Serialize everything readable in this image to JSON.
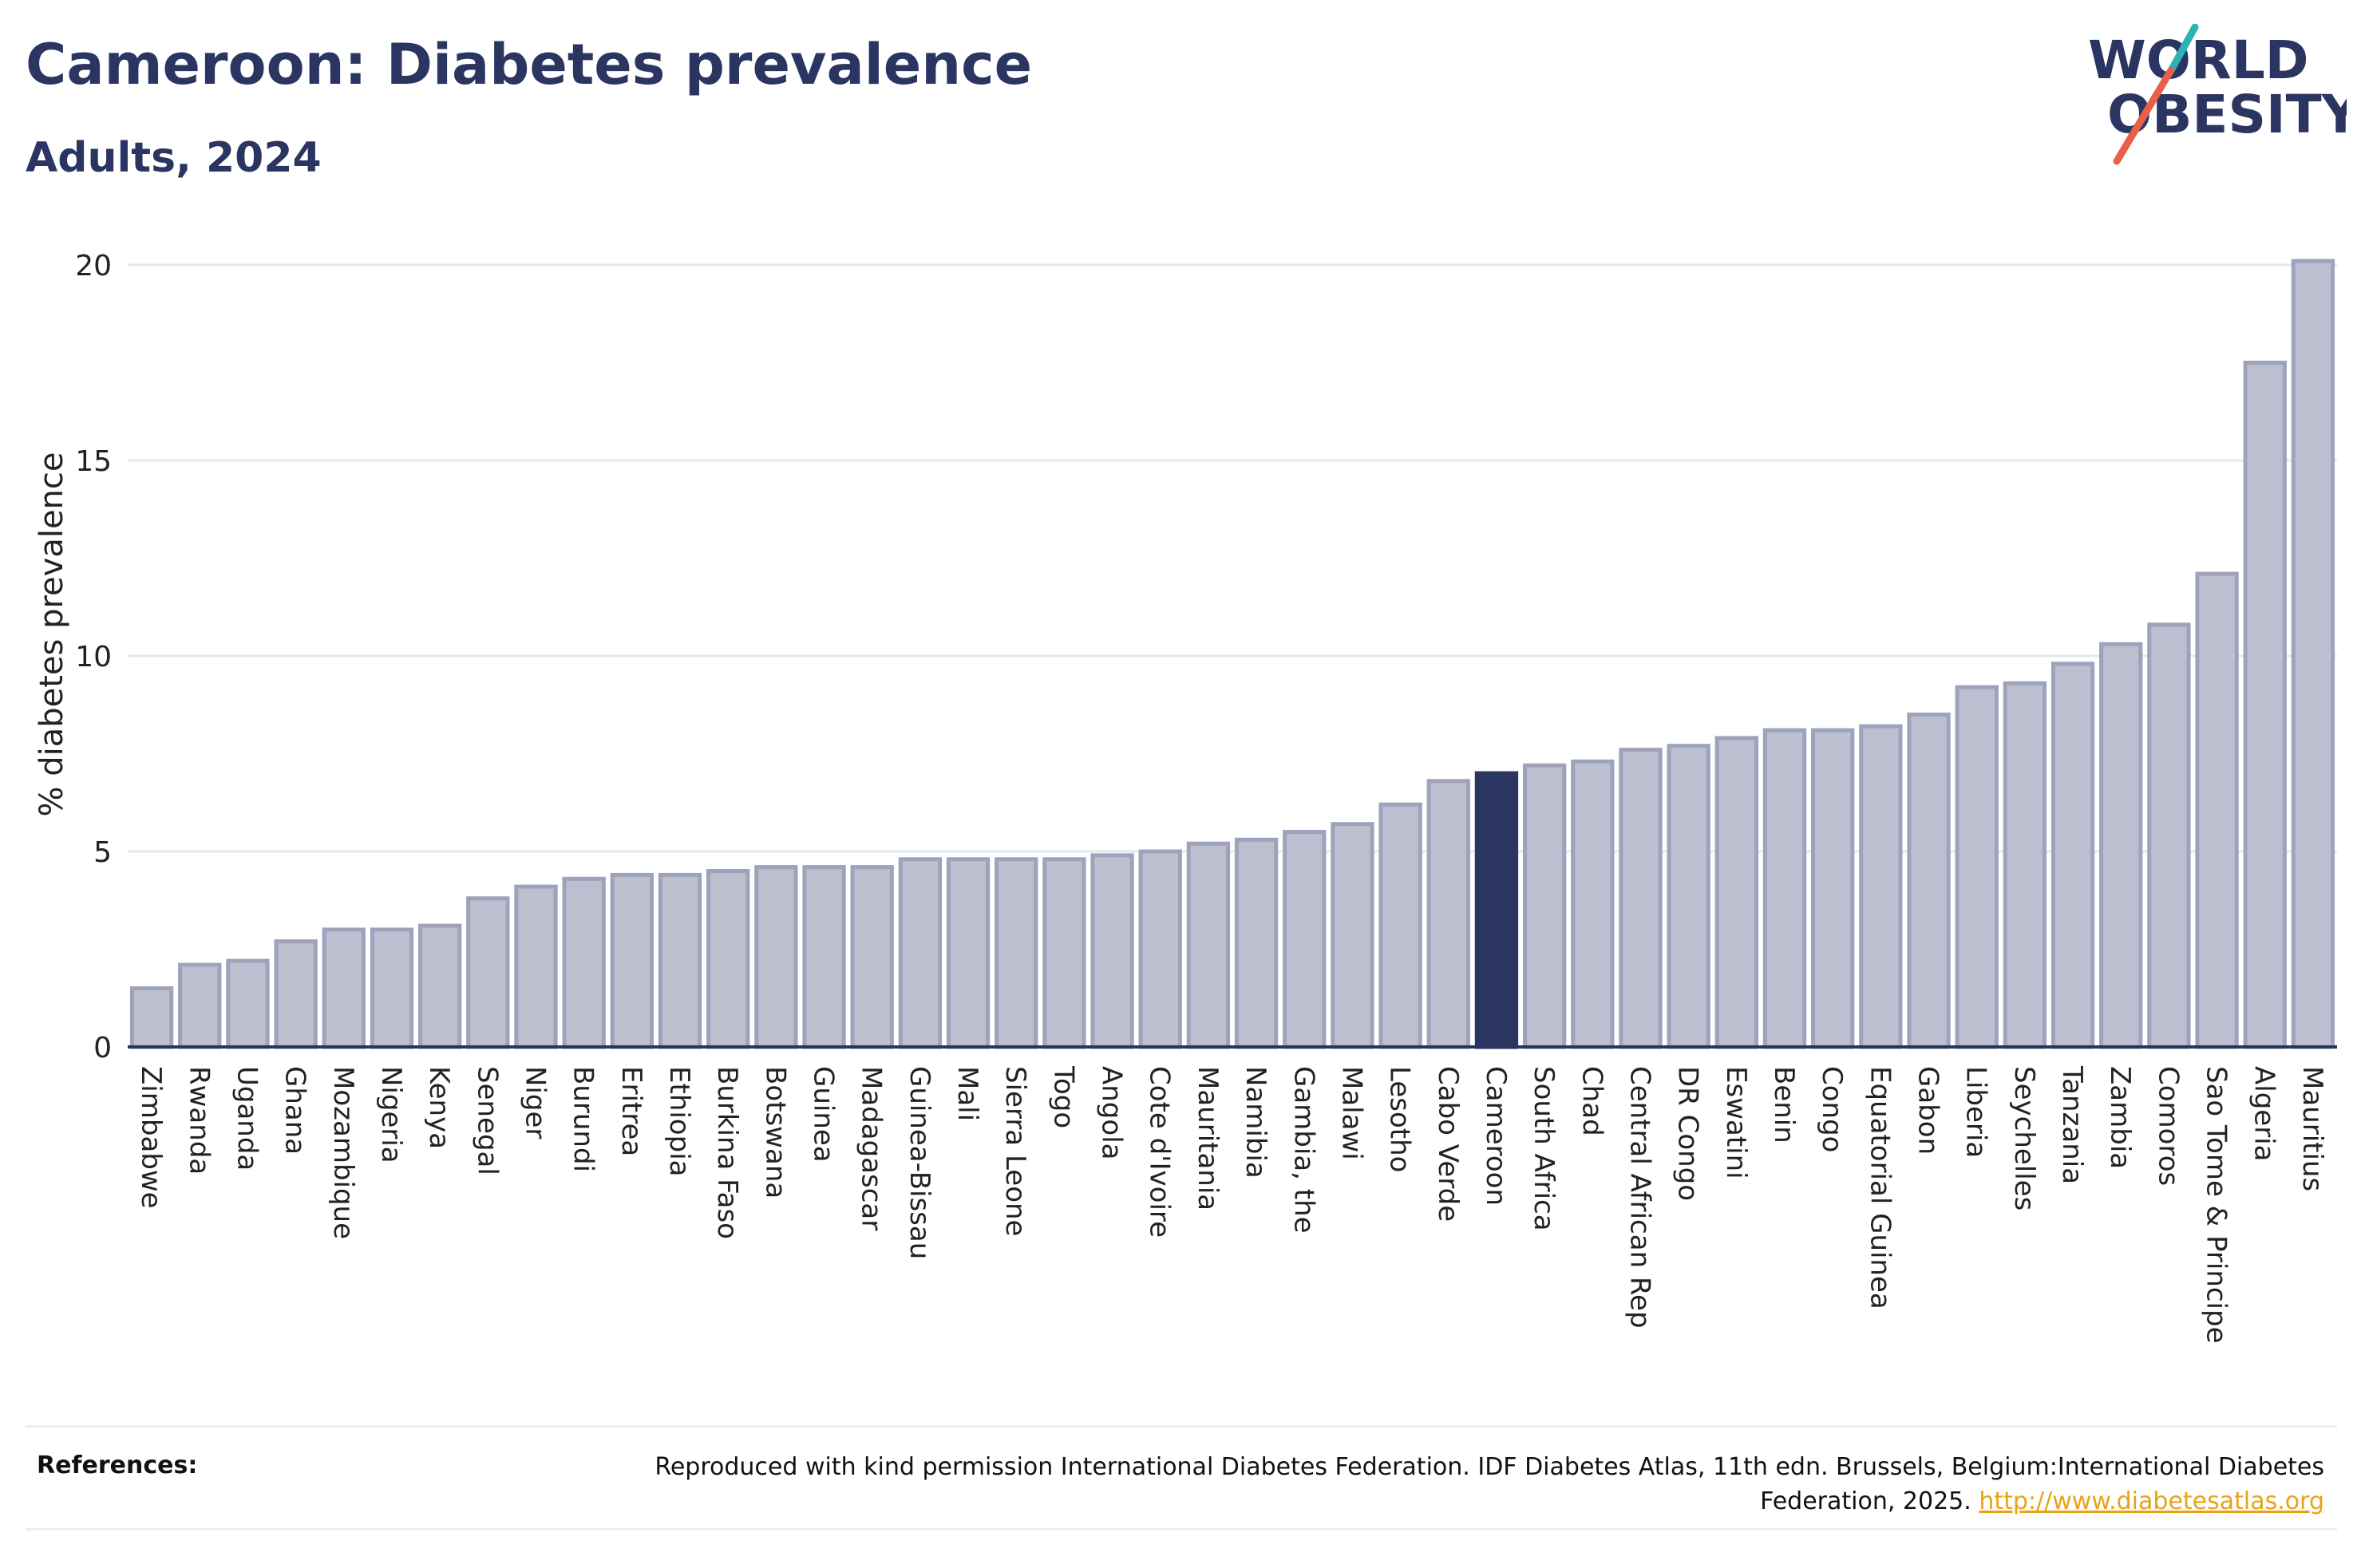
{
  "header": {
    "title": "Cameroon: Diabetes prevalence",
    "subtitle": "Adults, 2024"
  },
  "logo": {
    "line1": "WORLD",
    "line2": "OBESITY",
    "colors": {
      "text": "#2b3561",
      "slash_top": "#2ab5b4",
      "slash_bottom": "#e8604c"
    }
  },
  "colors": {
    "bar": "#bcbfd0",
    "bar_border": "#9ea3bb",
    "highlight": "#2b3561",
    "grid": "#e6e7ec",
    "axis": "#2b3561"
  },
  "chart_data": {
    "type": "bar",
    "title": "",
    "xlabel": "",
    "ylabel": "% diabetes prevalence",
    "ylim": [
      0,
      20.5
    ],
    "yticks": [
      0,
      5,
      10,
      15,
      20
    ],
    "grid": true,
    "highlight": "Cameroon",
    "categories": [
      "Zimbabwe",
      "Rwanda",
      "Uganda",
      "Ghana",
      "Mozambique",
      "Nigeria",
      "Kenya",
      "Senegal",
      "Niger",
      "Burundi",
      "Eritrea",
      "Ethiopia",
      "Burkina Faso",
      "Botswana",
      "Guinea",
      "Madagascar",
      "Guinea-Bissau",
      "Mali",
      "Sierra Leone",
      "Togo",
      "Angola",
      "Cote d'Ivoire",
      "Mauritania",
      "Namibia",
      "Gambia, the",
      "Malawi",
      "Lesotho",
      "Cabo Verde",
      "Cameroon",
      "South Africa",
      "Chad",
      "Central African Rep",
      "DR Congo",
      "Eswatini",
      "Benin",
      "Congo",
      "Equatorial Guinea",
      "Gabon",
      "Liberia",
      "Seychelles",
      "Tanzania",
      "Zambia",
      "Comoros",
      "Sao Tome & Principe",
      "Algeria",
      "Mauritius"
    ],
    "values": [
      1.5,
      2.1,
      2.2,
      2.7,
      3.0,
      3.0,
      3.1,
      3.8,
      4.1,
      4.3,
      4.4,
      4.4,
      4.5,
      4.6,
      4.6,
      4.6,
      4.8,
      4.8,
      4.8,
      4.8,
      4.9,
      5.0,
      5.2,
      5.3,
      5.5,
      5.7,
      6.2,
      6.8,
      7.0,
      7.2,
      7.3,
      7.6,
      7.7,
      7.9,
      8.1,
      8.1,
      8.2,
      8.5,
      9.2,
      9.3,
      9.8,
      10.3,
      10.8,
      12.1,
      17.5,
      20.1
    ]
  },
  "footer": {
    "references_label": "References:",
    "reference_text": "Reproduced with kind permission International Diabetes Federation. IDF Diabetes Atlas, 11th edn. Brussels, Belgium:International Diabetes Federation, 2025.",
    "reference_link": "http://www.diabetesatlas.org"
  }
}
